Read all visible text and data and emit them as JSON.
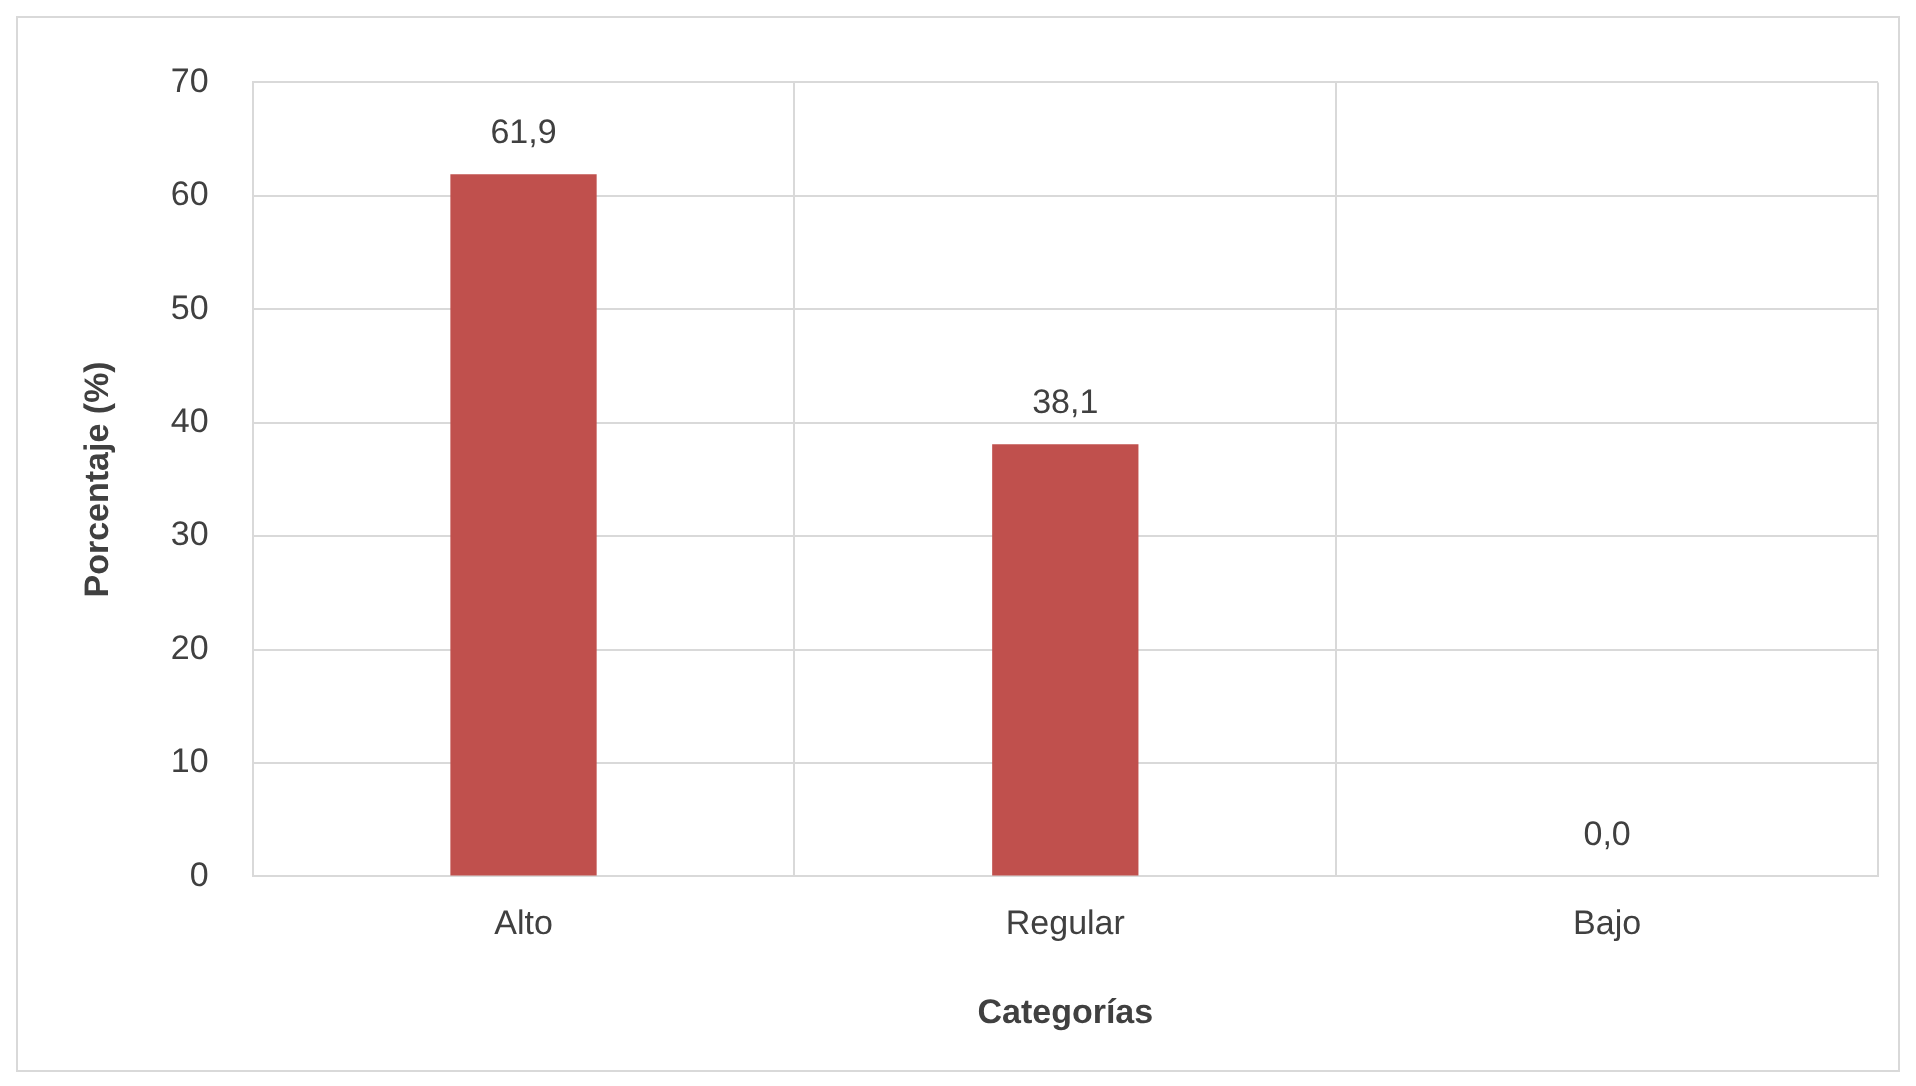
{
  "chart_data": {
    "type": "bar",
    "xlabel": "Categorías",
    "ylabel": "Porcentaje (%)",
    "categories": [
      "Alto",
      "Regular",
      "Bajo"
    ],
    "values": [
      61.9,
      38.1,
      0.0
    ],
    "color": "#c0504d",
    "value_labels": [
      "61,9",
      "38,1",
      "0,0"
    ],
    "ylim": [
      0,
      70
    ],
    "yticks": [
      0,
      10,
      20,
      30,
      40,
      50,
      60,
      70
    ],
    "grid": true,
    "legend": false
  }
}
